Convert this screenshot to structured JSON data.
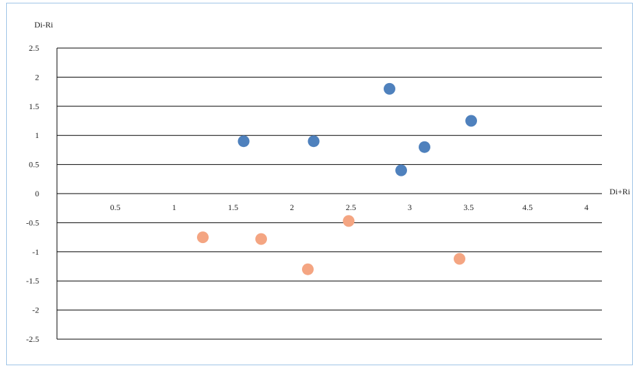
{
  "chart_data": {
    "type": "scatter",
    "title": "",
    "xlabel": "Di+Ri",
    "ylabel": "Di-Ri",
    "ylim": [
      -2.5,
      2.5
    ],
    "y_ticks": [
      "2.5",
      "2",
      "1.5",
      "1",
      "0.5",
      "0",
      "-0.5",
      "-1",
      "-1.5",
      "-2",
      "-2.5"
    ],
    "x_ticks": [
      "0.5",
      "1",
      "1.5",
      "2",
      "2.5",
      "3",
      "3.5",
      "4.5",
      "4"
    ],
    "grid": true,
    "legend": "none",
    "series": [
      {
        "color": "#4f81bd",
        "points": [
          {
            "x": 1.6,
            "y": 0.9
          },
          {
            "x": 2.2,
            "y": 0.9
          },
          {
            "x": 2.85,
            "y": 1.8
          },
          {
            "x": 2.95,
            "y": 0.4
          },
          {
            "x": 3.15,
            "y": 0.8
          },
          {
            "x": 3.55,
            "y": 1.25
          }
        ]
      },
      {
        "color": "#f4a582",
        "points": [
          {
            "x": 1.25,
            "y": -0.75
          },
          {
            "x": 1.75,
            "y": -0.78
          },
          {
            "x": 2.15,
            "y": -1.3
          },
          {
            "x": 2.5,
            "y": -0.47
          },
          {
            "x": 3.45,
            "y": -1.12
          }
        ]
      }
    ]
  }
}
